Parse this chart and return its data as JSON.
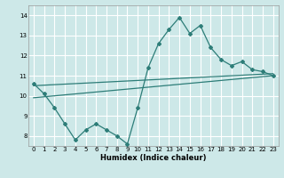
{
  "xlabel": "Humidex (Indice chaleur)",
  "bg_color": "#cde8e8",
  "grid_color": "#ffffff",
  "line_color": "#2d7d78",
  "xlim": [
    -0.5,
    23.5
  ],
  "ylim": [
    7.5,
    14.5
  ],
  "xticks": [
    0,
    1,
    2,
    3,
    4,
    5,
    6,
    7,
    8,
    9,
    10,
    11,
    12,
    13,
    14,
    15,
    16,
    17,
    18,
    19,
    20,
    21,
    22,
    23
  ],
  "yticks": [
    8,
    9,
    10,
    11,
    12,
    13,
    14
  ],
  "line1_x": [
    0,
    1,
    2,
    3,
    4,
    5,
    6,
    7,
    8,
    9,
    10,
    11,
    12,
    13,
    14,
    15,
    16,
    17,
    18,
    19,
    20,
    21,
    22,
    23
  ],
  "line1_y": [
    10.6,
    10.1,
    9.4,
    8.6,
    7.8,
    8.3,
    8.6,
    8.3,
    8.0,
    7.6,
    9.4,
    11.4,
    12.6,
    13.3,
    13.9,
    13.1,
    13.5,
    12.4,
    11.8,
    11.5,
    11.7,
    11.3,
    11.2,
    11.0
  ],
  "line2_x": [
    0,
    23
  ],
  "line2_y": [
    10.5,
    11.1
  ],
  "line3_x": [
    0,
    23
  ],
  "line3_y": [
    9.9,
    11.0
  ]
}
